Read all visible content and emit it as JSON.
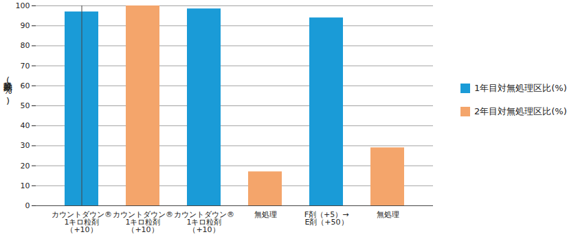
{
  "chart_data": {
    "type": "bar",
    "y_label": "除草効果(%)",
    "categories": [
      "カウントダウン®\n1キロ粒剤\n（+10）",
      "カウントダウン®\n1キロ粒剤\n（+10）",
      "カウントダウン®\n1キロ粒剤\n（+10）",
      "無処理",
      "F剤（+5）→\nE剤（+50）",
      "無処理"
    ],
    "series": [
      {
        "name": "1年目対無処理区比(%)",
        "color": "#1a9bd7",
        "values": [
          97,
          null,
          98.5,
          null,
          94,
          null
        ]
      },
      {
        "name": "2年目対無処理区比(%)",
        "color": "#f4a56b",
        "values": [
          null,
          100,
          null,
          17,
          null,
          29
        ]
      }
    ],
    "ylim": [
      0,
      100
    ],
    "yticks": [
      0,
      10,
      20,
      30,
      40,
      50,
      60,
      70,
      80,
      90,
      100
    ],
    "grid": true,
    "legend": "right"
  }
}
